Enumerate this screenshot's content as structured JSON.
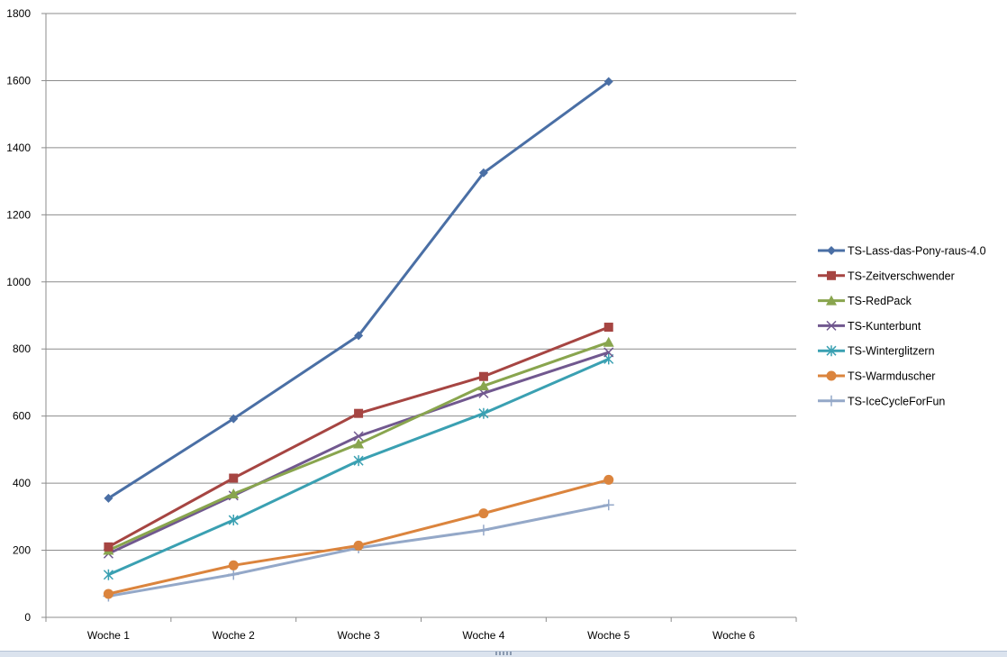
{
  "chart_data": {
    "type": "line",
    "title": "",
    "xlabel": "",
    "ylabel": "",
    "categories": [
      "Woche 1",
      "Woche 2",
      "Woche 3",
      "Woche 4",
      "Woche 5",
      "Woche 6"
    ],
    "ylim": [
      0,
      1800
    ],
    "yticks": [
      "0",
      "200",
      "400",
      "600",
      "800",
      "1000",
      "1200",
      "1400",
      "1600",
      "1800"
    ],
    "grid": "horizontal",
    "legend_position": "right",
    "series": [
      {
        "name": "TS-Lass-das-Pony-raus-4.0",
        "color": "#4a6fa5",
        "marker": "diamond",
        "values": [
          355,
          592,
          840,
          1325,
          1597,
          null
        ]
      },
      {
        "name": "TS-Zeitverschwender",
        "color": "#a64542",
        "marker": "square",
        "values": [
          210,
          415,
          608,
          718,
          865,
          null
        ]
      },
      {
        "name": "TS-RedPack",
        "color": "#89a54e",
        "marker": "triangle",
        "values": [
          200,
          368,
          517,
          690,
          820,
          null
        ]
      },
      {
        "name": "TS-Kunterbunt",
        "color": "#71588f",
        "marker": "x",
        "values": [
          190,
          363,
          540,
          668,
          790,
          null
        ]
      },
      {
        "name": "TS-Winterglitzern",
        "color": "#3aa0b2",
        "marker": "star",
        "values": [
          127,
          290,
          467,
          608,
          770,
          null
        ]
      },
      {
        "name": "TS-Warmduscher",
        "color": "#db843d",
        "marker": "circle",
        "values": [
          70,
          155,
          214,
          310,
          410,
          null
        ]
      },
      {
        "name": "TS-IceCycleForFun",
        "color": "#94a8c8",
        "marker": "plus",
        "values": [
          63,
          128,
          207,
          260,
          335,
          null
        ]
      }
    ]
  }
}
